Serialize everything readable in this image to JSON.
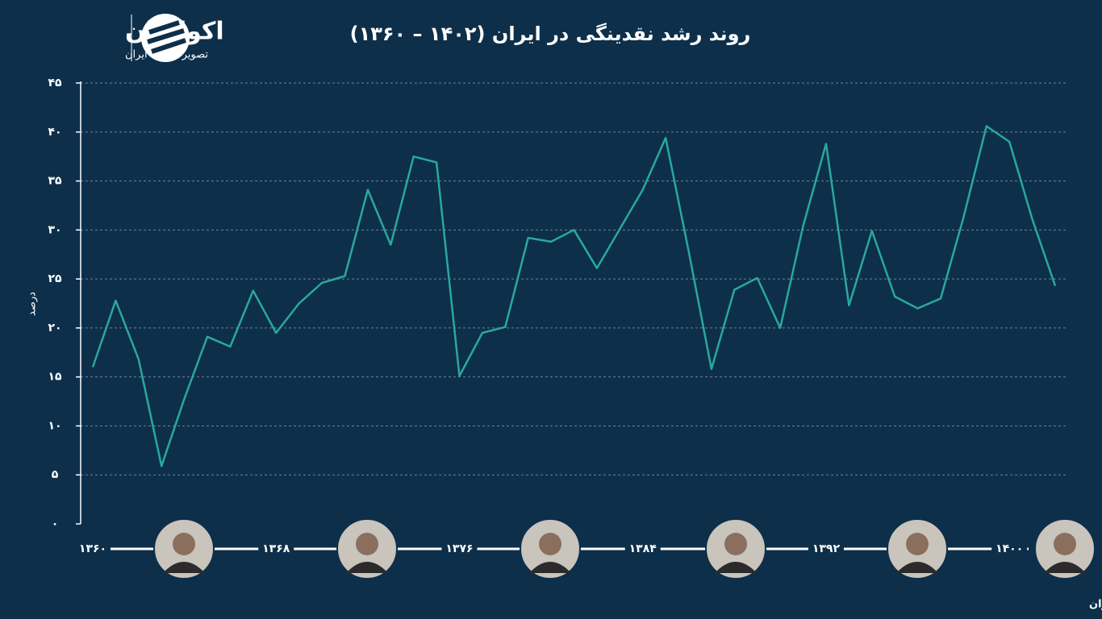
{
  "logo": {
    "name": "اکوایران",
    "tagline": "تصویر اقتصاد ایران"
  },
  "source": "منبع داده: بانک مرکزی ایران",
  "chart_data": {
    "type": "line",
    "title": "روند رشد نقدینگی در ایران (۱۴۰۲ – ۱۳۶۰)",
    "y_label": "درصد",
    "color": "#2aa89b",
    "grid": true,
    "x": [
      1360,
      1361,
      1362,
      1363,
      1364,
      1365,
      1366,
      1367,
      1368,
      1369,
      1370,
      1371,
      1372,
      1373,
      1374,
      1375,
      1376,
      1377,
      1378,
      1379,
      1380,
      1381,
      1382,
      1383,
      1384,
      1385,
      1386,
      1387,
      1388,
      1389,
      1390,
      1391,
      1392,
      1393,
      1394,
      1395,
      1396,
      1397,
      1398,
      1399,
      1400,
      1401,
      1402
    ],
    "values": [
      16.0,
      22.8,
      16.8,
      5.9,
      12.8,
      19.1,
      18.1,
      23.8,
      19.5,
      22.5,
      24.6,
      25.3,
      34.1,
      28.5,
      37.5,
      36.9,
      15.1,
      19.5,
      20.1,
      29.2,
      28.8,
      30.0,
      26.1,
      30.1,
      34.1,
      39.4,
      27.9,
      15.8,
      23.9,
      25.1,
      20.0,
      30.4,
      38.8,
      22.3,
      29.9,
      23.2,
      22.0,
      23.0,
      31.3,
      40.6,
      39.0,
      31.1,
      24.3
    ],
    "xlim": [
      1360,
      1402
    ],
    "xticks": [
      {
        "value": 1360,
        "label": "۱۳۶۰"
      },
      {
        "value": 1368,
        "label": "۱۳۶۸"
      },
      {
        "value": 1376,
        "label": "۱۳۷۶"
      },
      {
        "value": 1384,
        "label": "۱۳۸۴"
      },
      {
        "value": 1392,
        "label": "۱۳۹۲"
      },
      {
        "value": 1400,
        "label": "۱۴۰۰"
      }
    ],
    "ylim": [
      0,
      45
    ],
    "yticks": [
      {
        "value": 0,
        "label": "۰"
      },
      {
        "value": 5,
        "label": "۵"
      },
      {
        "value": 10,
        "label": "۱۰"
      },
      {
        "value": 15,
        "label": "۱۵"
      },
      {
        "value": 20,
        "label": "۲۰"
      },
      {
        "value": 25,
        "label": "۲۵"
      },
      {
        "value": 30,
        "label": "۳۰"
      },
      {
        "value": 35,
        "label": "۳۵"
      },
      {
        "value": 40,
        "label": "۴۰"
      },
      {
        "value": 45,
        "label": "۴۵"
      }
    ]
  }
}
